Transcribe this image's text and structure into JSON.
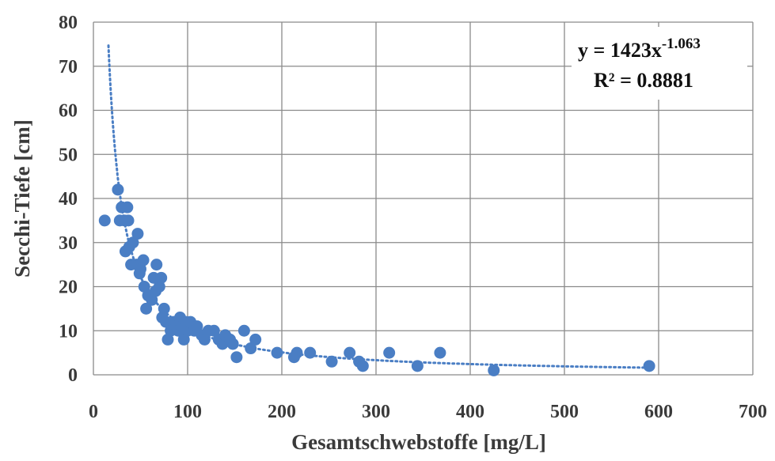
{
  "chart_data": {
    "type": "scatter",
    "xlabel": "Gesamtschwebstoffe [mg/L]",
    "ylabel": "Secchi-Tiefe [cm]",
    "xlim": [
      0,
      700
    ],
    "ylim": [
      0,
      80
    ],
    "x_ticks": [
      "0",
      "100",
      "200",
      "300",
      "400",
      "500",
      "600",
      "700"
    ],
    "y_ticks": [
      "0",
      "10",
      "20",
      "30",
      "40",
      "50",
      "60",
      "70",
      "80"
    ],
    "grid": true,
    "marker_color": "#4a7ec4",
    "trendline": {
      "type": "power",
      "coefficient": 1423,
      "exponent": -1.063,
      "style": "dotted",
      "color": "#4a7ec4",
      "equation_base": "y = 1423x",
      "equation_exponent": "-1.063",
      "r_squared_label": "R² = 0.8881"
    },
    "points": [
      [
        12,
        35
      ],
      [
        26,
        42
      ],
      [
        28,
        35
      ],
      [
        30,
        38
      ],
      [
        33,
        35
      ],
      [
        34,
        28
      ],
      [
        36,
        38
      ],
      [
        37,
        35
      ],
      [
        38,
        29
      ],
      [
        40,
        25
      ],
      [
        42,
        30
      ],
      [
        46,
        25
      ],
      [
        47,
        32
      ],
      [
        49,
        23
      ],
      [
        50,
        24
      ],
      [
        53,
        26
      ],
      [
        54,
        20
      ],
      [
        56,
        15
      ],
      [
        58,
        18
      ],
      [
        60,
        18
      ],
      [
        62,
        17
      ],
      [
        64,
        22
      ],
      [
        66,
        19
      ],
      [
        67,
        25
      ],
      [
        70,
        20
      ],
      [
        72,
        22
      ],
      [
        73,
        13
      ],
      [
        75,
        15
      ],
      [
        77,
        12
      ],
      [
        79,
        8
      ],
      [
        82,
        10
      ],
      [
        85,
        12
      ],
      [
        88,
        11
      ],
      [
        90,
        10
      ],
      [
        92,
        13
      ],
      [
        94,
        11
      ],
      [
        96,
        8
      ],
      [
        98,
        12
      ],
      [
        100,
        10
      ],
      [
        103,
        12
      ],
      [
        107,
        10
      ],
      [
        110,
        11
      ],
      [
        115,
        9
      ],
      [
        118,
        8
      ],
      [
        122,
        10
      ],
      [
        128,
        10
      ],
      [
        133,
        8
      ],
      [
        137,
        7
      ],
      [
        140,
        9
      ],
      [
        145,
        8
      ],
      [
        148,
        7
      ],
      [
        152,
        4
      ],
      [
        160,
        10
      ],
      [
        167,
        6
      ],
      [
        172,
        8
      ],
      [
        195,
        5
      ],
      [
        213,
        4
      ],
      [
        216,
        5
      ],
      [
        230,
        5
      ],
      [
        253,
        3
      ],
      [
        272,
        5
      ],
      [
        282,
        3
      ],
      [
        286,
        2
      ],
      [
        314,
        5
      ],
      [
        344,
        2
      ],
      [
        368,
        5
      ],
      [
        425,
        1
      ],
      [
        590,
        2
      ]
    ]
  }
}
